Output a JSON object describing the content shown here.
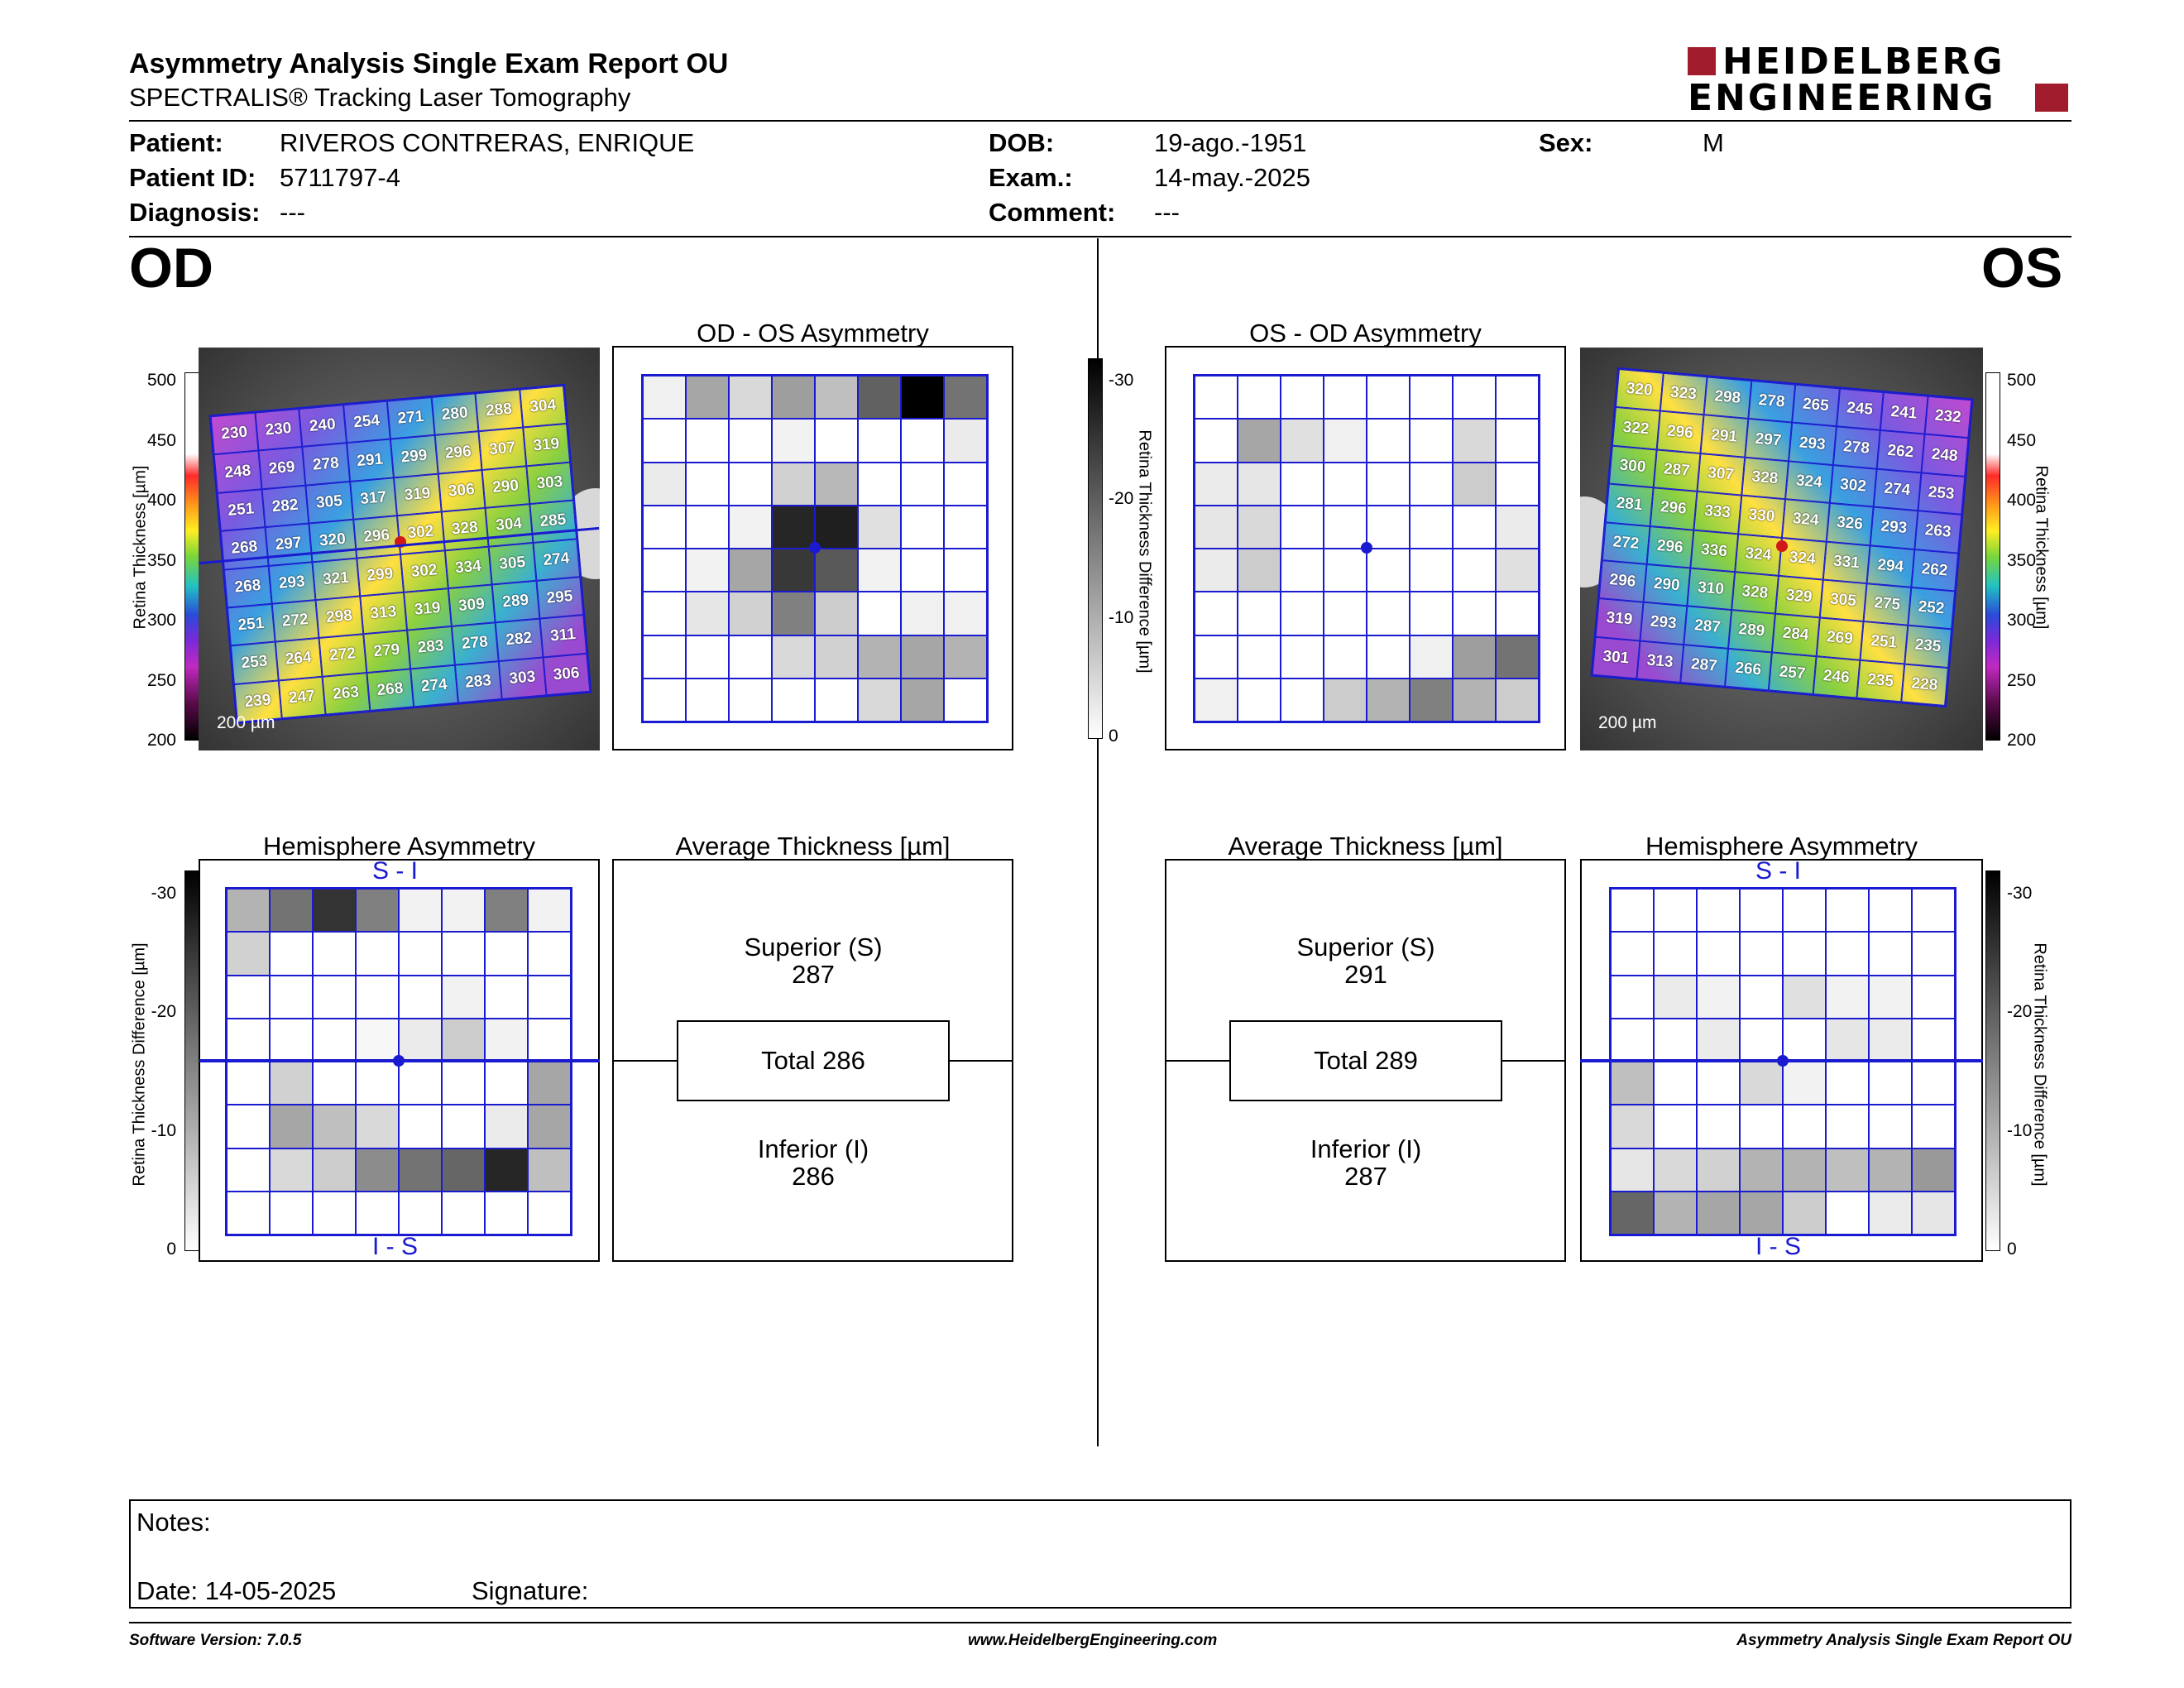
{
  "header": {
    "title": "Asymmetry Analysis Single Exam Report OU",
    "subtitle": "SPECTRALIS® Tracking Laser Tomography",
    "logo_line1": "HEIDELBERG",
    "logo_line2": "ENGINEERING"
  },
  "patient": {
    "patient_label": "Patient:",
    "patient_value": "RIVEROS CONTRERAS, ENRIQUE",
    "id_label": "Patient ID:",
    "id_value": "5711797-4",
    "diag_label": "Diagnosis:",
    "diag_value": "---",
    "dob_label": "DOB:",
    "dob_value": "19-ago.-1951",
    "exam_label": "Exam.:",
    "exam_value": "14-may.-2025",
    "comment_label": "Comment:",
    "comment_value": "---",
    "sex_label": "Sex:",
    "sex_value": "M"
  },
  "od": {
    "eye_label": "OD",
    "asym_title": "OD - OS Asymmetry",
    "hemi_title": "Hemisphere Asymmetry",
    "avg_title": "Average Thickness [µm]",
    "superior_label": "Superior (S)",
    "superior_value": "287",
    "total": "Total 286",
    "inferior_label": "Inferior (I)",
    "inferior_value": "286",
    "hemi_top": "S - I",
    "hemi_bottom": "I - S",
    "scale": "200 µm",
    "thickness_map": [
      [
        230,
        230,
        240,
        254,
        271,
        280,
        288,
        304
      ],
      [
        248,
        269,
        278,
        291,
        299,
        296,
        307,
        319
      ],
      [
        251,
        282,
        305,
        317,
        319,
        306,
        290,
        303
      ],
      [
        268,
        297,
        320,
        296,
        302,
        328,
        304,
        285
      ],
      [
        268,
        293,
        321,
        299,
        302,
        334,
        305,
        274
      ],
      [
        251,
        272,
        298,
        313,
        319,
        309,
        289,
        295
      ],
      [
        253,
        264,
        272,
        279,
        283,
        278,
        282,
        311
      ],
      [
        239,
        247,
        263,
        268,
        274,
        283,
        303,
        306
      ]
    ],
    "asym_grid": [
      [
        0.06,
        0.35,
        0.15,
        0.38,
        0.25,
        0.62,
        1.0,
        0.55
      ],
      [
        0,
        0,
        0,
        0.05,
        0,
        0,
        0,
        0.08
      ],
      [
        0.08,
        0,
        0,
        0.18,
        0.28,
        0,
        0,
        0
      ],
      [
        0,
        0,
        0.05,
        0.85,
        0.88,
        0.12,
        0,
        0
      ],
      [
        0,
        0.05,
        0.35,
        0.78,
        0.65,
        0.05,
        0,
        0
      ],
      [
        0,
        0.1,
        0.18,
        0.5,
        0.2,
        0,
        0.06,
        0.06
      ],
      [
        0,
        0,
        0,
        0.15,
        0.18,
        0.3,
        0.35,
        0.3
      ],
      [
        0,
        0,
        0,
        0,
        0,
        0.15,
        0.35,
        0
      ]
    ],
    "hemi_grid": [
      [
        0.3,
        0.55,
        0.8,
        0.5,
        0.05,
        0.05,
        0.5,
        0.05
      ],
      [
        0.18,
        0,
        0,
        0,
        0,
        0,
        0,
        0
      ],
      [
        0,
        0,
        0,
        0,
        0,
        0.05,
        0,
        0
      ],
      [
        0,
        0,
        0,
        0.03,
        0.08,
        0.2,
        0.05,
        0
      ],
      [
        0,
        0.18,
        0,
        0,
        0,
        0,
        0,
        0.35
      ],
      [
        0,
        0.35,
        0.25,
        0.15,
        0,
        0,
        0.08,
        0.35
      ],
      [
        0,
        0.15,
        0.2,
        0.45,
        0.55,
        0.6,
        0.85,
        0.25
      ],
      [
        0,
        0,
        0,
        0,
        0,
        0,
        0,
        0
      ]
    ]
  },
  "os": {
    "eye_label": "OS",
    "asym_title": "OS - OD Asymmetry",
    "hemi_title": "Hemisphere Asymmetry",
    "avg_title": "Average Thickness [µm]",
    "superior_label": "Superior (S)",
    "superior_value": "291",
    "total": "Total 289",
    "inferior_label": "Inferior (I)",
    "inferior_value": "287",
    "hemi_top": "S - I",
    "hemi_bottom": "I - S",
    "scale": "200 µm",
    "thickness_map": [
      [
        320,
        323,
        298,
        278,
        265,
        245,
        241,
        232
      ],
      [
        322,
        296,
        291,
        297,
        293,
        278,
        262,
        248
      ],
      [
        300,
        287,
        307,
        328,
        324,
        302,
        274,
        253
      ],
      [
        281,
        296,
        333,
        330,
        324,
        326,
        293,
        263
      ],
      [
        272,
        296,
        336,
        324,
        324,
        331,
        294,
        262
      ],
      [
        296,
        290,
        310,
        328,
        329,
        305,
        275,
        252
      ],
      [
        319,
        293,
        287,
        289,
        284,
        269,
        251,
        235
      ],
      [
        301,
        313,
        287,
        266,
        257,
        246,
        235,
        228
      ]
    ],
    "asym_grid": [
      [
        0,
        0,
        0,
        0,
        0,
        0,
        0,
        0
      ],
      [
        0,
        0.35,
        0.12,
        0.06,
        0,
        0,
        0.15,
        0
      ],
      [
        0.08,
        0.1,
        0,
        0,
        0,
        0,
        0.2,
        0
      ],
      [
        0.1,
        0.15,
        0,
        0,
        0,
        0,
        0,
        0.08
      ],
      [
        0.08,
        0.2,
        0,
        0,
        0,
        0,
        0,
        0.12
      ],
      [
        0,
        0,
        0,
        0,
        0,
        0,
        0,
        0
      ],
      [
        0,
        0,
        0,
        0,
        0,
        0.06,
        0.38,
        0.55
      ],
      [
        0.06,
        0,
        0,
        0.2,
        0.3,
        0.5,
        0.3,
        0.2
      ]
    ],
    "hemi_grid": [
      [
        0,
        0,
        0,
        0,
        0,
        0,
        0,
        0
      ],
      [
        0,
        0,
        0,
        0,
        0,
        0,
        0,
        0
      ],
      [
        0,
        0.08,
        0.05,
        0,
        0.12,
        0.05,
        0.05,
        0
      ],
      [
        0,
        0,
        0.08,
        0,
        0,
        0.1,
        0.08,
        0
      ],
      [
        0.25,
        0,
        0,
        0.15,
        0.05,
        0,
        0,
        0
      ],
      [
        0.15,
        0,
        0,
        0,
        0,
        0,
        0,
        0
      ],
      [
        0.1,
        0.15,
        0.18,
        0.3,
        0.3,
        0.25,
        0.3,
        0.4
      ],
      [
        0.6,
        0.3,
        0.35,
        0.35,
        0.2,
        0,
        0.08,
        0.1
      ]
    ]
  },
  "thickness_scale": {
    "ticks": [
      "500",
      "450",
      "400",
      "350",
      "300",
      "250",
      "200"
    ],
    "label": "Retina  Thickness [µm]"
  },
  "diff_scale": {
    "ticks": [
      "-30",
      "-20",
      "-10",
      "0"
    ],
    "label": "Retina Thickness Difference [µm]"
  },
  "notes": {
    "notes_label": "Notes:",
    "date_label": "Date: 14-05-2025",
    "signature_label": "Signature:"
  },
  "footer": {
    "version": "Software Version: 7.0.5",
    "website": "www.HeidelbergEngineering.com",
    "report": "Asymmetry Analysis Single Exam Report OU"
  },
  "colors": {
    "grid_line": "#1a1ad0",
    "logo_red": "#a01c2c"
  }
}
